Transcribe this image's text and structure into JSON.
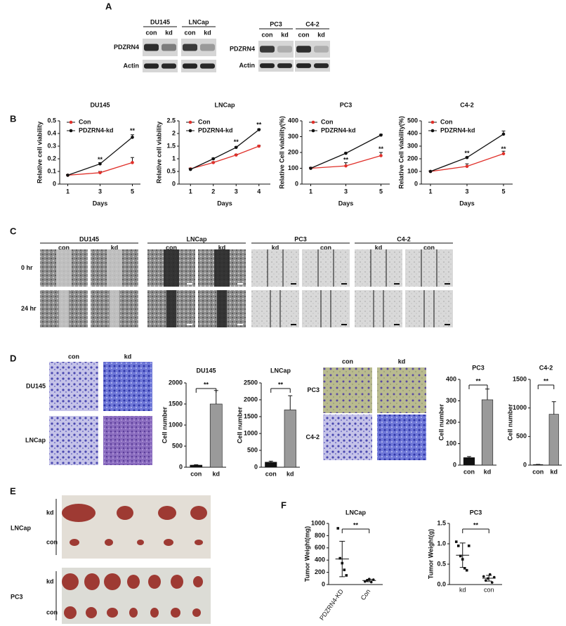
{
  "panel_labels": [
    "A",
    "B",
    "C",
    "D",
    "E",
    "F"
  ],
  "blots": [
    {
      "cell_lines": [
        "DU145",
        "LNCap"
      ],
      "lanes": [
        "con",
        "kd",
        "con",
        "kd"
      ],
      "rows": [
        "PDZRN4",
        "Actin"
      ]
    },
    {
      "cell_lines": [
        "PC3",
        "C4-2"
      ],
      "lanes": [
        "con",
        "kd",
        "con",
        "kd"
      ],
      "rows": [
        "PDZRN4",
        "Actin"
      ]
    }
  ],
  "wound": {
    "rows": [
      "0 hr",
      "24 hr"
    ],
    "groups": [
      {
        "name": "DU145",
        "lanes": [
          "con",
          "kd"
        ]
      },
      {
        "name": "LNCap",
        "lanes": [
          "con",
          "kd"
        ]
      },
      {
        "name": "PC3",
        "lanes": [
          "kd",
          "con"
        ]
      },
      {
        "name": "C4-2",
        "lanes": [
          "kd",
          "con"
        ]
      }
    ]
  },
  "transwell": [
    {
      "lanes": [
        "con",
        "kd"
      ],
      "rows": [
        "DU145",
        "LNCap"
      ]
    },
    {
      "lanes": [
        "con",
        "kd"
      ],
      "rows": [
        "PC3",
        "C4-2"
      ]
    }
  ],
  "tumors": {
    "groups": [
      {
        "name": "LNCap",
        "rows": [
          "kd",
          "con"
        ]
      },
      {
        "name": "PC3",
        "rows": [
          "kd",
          "con"
        ]
      }
    ]
  },
  "chart_data": [
    {
      "type": "line",
      "title": "DU145",
      "xlabel": "Days",
      "ylabel": "Relative cell viability",
      "x": [
        1,
        3,
        5
      ],
      "xlim": [
        0.5,
        5.5
      ],
      "xticks": [
        1,
        3,
        5
      ],
      "ylim": [
        0,
        0.5
      ],
      "yticks": [
        0,
        0.1,
        0.2,
        0.3,
        0.4,
        0.5
      ],
      "series": [
        {
          "name": "Con",
          "color": "#e0302a",
          "values": [
            0.07,
            0.09,
            0.17
          ],
          "errors": [
            0.005,
            0.01,
            0.04
          ]
        },
        {
          "name": "PDZRN4-kd",
          "color": "#111111",
          "values": [
            0.07,
            0.16,
            0.37
          ],
          "errors": [
            0.005,
            0.01,
            0.02
          ]
        }
      ],
      "annotations": [
        {
          "text": "**",
          "x": 3,
          "y": 0.19
        },
        {
          "text": "**",
          "x": 5,
          "y": 0.42
        }
      ]
    },
    {
      "type": "line",
      "title": "LNCap",
      "xlabel": "Days",
      "ylabel": "Relative cell viability",
      "x": [
        1,
        2,
        3,
        4
      ],
      "xlim": [
        0.5,
        4.5
      ],
      "xticks": [
        1,
        2,
        3,
        4
      ],
      "ylim": [
        0,
        2.5
      ],
      "yticks": [
        0,
        0.5,
        1,
        1.5,
        2,
        2.5
      ],
      "series": [
        {
          "name": "Con",
          "color": "#e0302a",
          "values": [
            0.6,
            0.85,
            1.15,
            1.5
          ],
          "errors": [
            0.03,
            0.03,
            0.03,
            0.03
          ]
        },
        {
          "name": "PDZRN4-kd",
          "color": "#111111",
          "values": [
            0.58,
            1.0,
            1.45,
            2.15
          ],
          "errors": [
            0.03,
            0.03,
            0.03,
            0.03
          ]
        }
      ],
      "annotations": [
        {
          "text": "**",
          "x": 3,
          "y": 1.65
        },
        {
          "text": "**",
          "x": 4,
          "y": 2.33
        }
      ]
    },
    {
      "type": "line",
      "title": "PC3",
      "xlabel": "Days",
      "ylabel": "Relative Cell viability(%)",
      "x": [
        1,
        3,
        5
      ],
      "xlim": [
        0.5,
        5.5
      ],
      "xticks": [
        1,
        3,
        5
      ],
      "ylim": [
        0,
        400
      ],
      "yticks": [
        0,
        100,
        200,
        300,
        400
      ],
      "series": [
        {
          "name": "Con",
          "color": "#e0302a",
          "values": [
            100,
            115,
            180
          ],
          "errors": [
            5,
            20,
            20
          ]
        },
        {
          "name": "PDZRN4-kd",
          "color": "#111111",
          "values": [
            100,
            195,
            310
          ],
          "errors": [
            5,
            5,
            5
          ]
        }
      ],
      "annotations": [
        {
          "text": "**",
          "x": 3,
          "y": 150
        },
        {
          "text": "**",
          "x": 5,
          "y": 220
        }
      ]
    },
    {
      "type": "line",
      "title": "C4-2",
      "xlabel": "Days",
      "ylabel": "Relative Cell viability(%)",
      "x": [
        1,
        3,
        5
      ],
      "xlim": [
        0.5,
        5.5
      ],
      "xticks": [
        1,
        3,
        5
      ],
      "ylim": [
        0,
        500
      ],
      "yticks": [
        0,
        100,
        200,
        300,
        400,
        500
      ],
      "series": [
        {
          "name": "Con",
          "color": "#e0302a",
          "values": [
            100,
            140,
            240
          ],
          "errors": [
            5,
            20,
            20
          ]
        },
        {
          "name": "PDZRN4-kd",
          "color": "#111111",
          "values": [
            100,
            210,
            395
          ],
          "errors": [
            5,
            5,
            25
          ]
        }
      ],
      "annotations": [
        {
          "text": "**",
          "x": 3,
          "y": 240
        },
        {
          "text": "**",
          "x": 5,
          "y": 275
        }
      ]
    },
    {
      "type": "bar",
      "title": "DU145",
      "ylabel": "Cell number",
      "categories": [
        "con",
        "kd"
      ],
      "values": [
        50,
        1500
      ],
      "errors": [
        10,
        320
      ],
      "colors": [
        "#111111",
        "#9a9a9a"
      ],
      "ylim": [
        0,
        2000
      ],
      "yticks": [
        0,
        500,
        1000,
        1500,
        2000
      ],
      "significance": "**"
    },
    {
      "type": "bar",
      "title": "LNCap",
      "ylabel": "Cell number",
      "categories": [
        "con",
        "kd"
      ],
      "values": [
        150,
        1700
      ],
      "errors": [
        30,
        420
      ],
      "colors": [
        "#111111",
        "#9a9a9a"
      ],
      "ylim": [
        0,
        2500
      ],
      "yticks": [
        0,
        500,
        1000,
        1500,
        2000,
        2500
      ],
      "significance": "**"
    },
    {
      "type": "bar",
      "title": "PC3",
      "ylabel": "Cell number",
      "categories": [
        "con",
        "kd"
      ],
      "values": [
        35,
        305
      ],
      "errors": [
        5,
        50
      ],
      "colors": [
        "#111111",
        "#9a9a9a"
      ],
      "ylim": [
        0,
        400
      ],
      "yticks": [
        0,
        100,
        200,
        300,
        400
      ],
      "significance": "**"
    },
    {
      "type": "bar",
      "title": "C4-2",
      "ylabel": "Cell number",
      "categories": [
        "con",
        "kd"
      ],
      "values": [
        10,
        890
      ],
      "errors": [
        3,
        220
      ],
      "colors": [
        "#111111",
        "#9a9a9a"
      ],
      "ylim": [
        0,
        1500
      ],
      "yticks": [
        0,
        500,
        1000,
        1500
      ],
      "significance": "**"
    },
    {
      "type": "dot",
      "title": "LNCap",
      "ylabel": "Tumor Weight(mg)",
      "categories": [
        "PDZRN4-KD",
        "Con"
      ],
      "points": [
        [
          920,
          430,
          350,
          240,
          150
        ],
        [
          50,
          70,
          90,
          40,
          80
        ]
      ],
      "means": [
        418,
        66
      ],
      "errors": [
        290,
        20
      ],
      "ylim": [
        0,
        1000
      ],
      "yticks": [
        0,
        200,
        400,
        600,
        800,
        1000
      ],
      "significance": "**"
    },
    {
      "type": "dot",
      "title": "PC3",
      "ylabel": "Tumor Weight(g)",
      "categories": [
        "kd",
        "con"
      ],
      "points": [
        [
          1.05,
          0.95,
          0.7,
          0.62,
          0.4,
          0.35,
          0.95
        ],
        [
          0.2,
          0.1,
          0.15,
          0.25,
          0.05,
          0.18
        ]
      ],
      "means": [
        0.72,
        0.155
      ],
      "errors": [
        0.3,
        0.07
      ],
      "ylim": [
        0,
        1.5
      ],
      "yticks": [
        {
          "value": 0,
          "label": "0.0"
        },
        0.5,
        {
          "value": 1,
          "label": "1.0"
        },
        1.5
      ],
      "significance": "**"
    }
  ]
}
